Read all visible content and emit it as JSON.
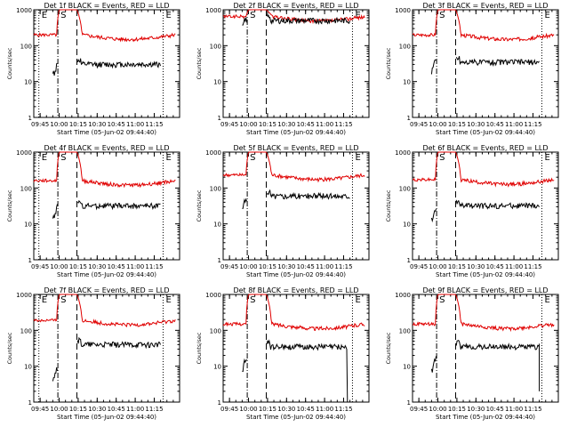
{
  "chart_data": [
    {
      "type": "line",
      "title": "Det 1f BLACK = Events, RED = LLD",
      "xlabel": "Start Time (05-Jun-02 09:44:40)",
      "ylabel": "Counts/sec",
      "yscale": "log",
      "ylim": [
        1,
        1000
      ],
      "x_tick_labels": [
        "09:45",
        "10:00",
        "10:15",
        "10:30",
        "10:45",
        "11:00",
        "11:15"
      ],
      "y_tick_labels": [
        "1",
        "10",
        "100",
        "1000"
      ],
      "markers": [
        {
          "label": "E",
          "time_min": -16
        },
        {
          "label": "S",
          "time_min": -1
        },
        {
          "label": "E",
          "time_min": 82
        }
      ],
      "series": [
        {
          "name": "RED = LLD",
          "color": "#e00000",
          "level": 200,
          "spike_max": 1000,
          "end_min": 92
        },
        {
          "name": "BLACK = Events",
          "color": "#000000",
          "level": 30,
          "pre_level": 15,
          "pre_start_min": -5,
          "end_min": 80
        }
      ]
    },
    {
      "type": "line",
      "title": "Det 2f BLACK = Events, RED = LLD",
      "xlabel": "Start Time (05-Jun-02 09:44:40)",
      "ylabel": "Counts/sec",
      "yscale": "log",
      "ylim": [
        1,
        1000
      ],
      "x_tick_labels": [
        "09:45",
        "10:00",
        "10:15",
        "10:30",
        "10:45",
        "11:00",
        "11:15"
      ],
      "y_tick_labels": [
        "1",
        "10",
        "100",
        "1000"
      ],
      "markers": [
        {
          "label": "S",
          "time_min": -1
        },
        {
          "label": "E",
          "time_min": 82
        }
      ],
      "series": [
        {
          "name": "RED = LLD",
          "color": "#e00000",
          "level": 650,
          "spike_max": 1000,
          "end_min": 92
        },
        {
          "name": "BLACK = Events",
          "color": "#000000",
          "level": 500,
          "pre_level": 300,
          "pre_start_min": -5,
          "end_min": 80
        }
      ]
    },
    {
      "type": "line",
      "title": "Det 3f BLACK = Events, RED = LLD",
      "xlabel": "Start Time (05-Jun-02 09:44:40)",
      "ylabel": "Counts/sec",
      "yscale": "log",
      "ylim": [
        1,
        1000
      ],
      "x_tick_labels": [
        "09:45",
        "10:00",
        "10:15",
        "10:30",
        "10:45",
        "11:00",
        "11:15"
      ],
      "y_tick_labels": [
        "1",
        "10",
        "100",
        "1000"
      ],
      "markers": [
        {
          "label": "S",
          "time_min": -1
        },
        {
          "label": "E",
          "time_min": 82
        }
      ],
      "series": [
        {
          "name": "RED = LLD",
          "color": "#e00000",
          "level": 200,
          "spike_max": 1000,
          "end_min": 92
        },
        {
          "name": "BLACK = Events",
          "color": "#000000",
          "level": 35,
          "pre_level": 20,
          "pre_start_min": -5,
          "end_min": 80
        }
      ]
    },
    {
      "type": "line",
      "title": "Det 4f BLACK = Events, RED = LLD",
      "xlabel": "Start Time (05-Jun-02 09:44:40)",
      "ylabel": "Counts/sec",
      "yscale": "log",
      "ylim": [
        1,
        1000
      ],
      "x_tick_labels": [
        "09:45",
        "10:00",
        "10:15",
        "10:30",
        "10:45",
        "11:00",
        "11:15"
      ],
      "y_tick_labels": [
        "1",
        "10",
        "100",
        "1000"
      ],
      "markers": [
        {
          "label": "E",
          "time_min": -16
        },
        {
          "label": "S",
          "time_min": -1
        },
        {
          "label": "E",
          "time_min": 82
        }
      ],
      "series": [
        {
          "name": "RED = LLD",
          "color": "#e00000",
          "level": 160,
          "spike_max": 1000,
          "end_min": 92
        },
        {
          "name": "BLACK = Events",
          "color": "#000000",
          "level": 32,
          "pre_level": 15,
          "pre_start_min": -5,
          "end_min": 80
        }
      ]
    },
    {
      "type": "line",
      "title": "Det 5f BLACK = Events, RED = LLD",
      "xlabel": "Start Time (05-Jun-02 09:44:40)",
      "ylabel": "Counts/sec",
      "yscale": "log",
      "ylim": [
        1,
        1000
      ],
      "x_tick_labels": [
        "09:45",
        "10:00",
        "10:15",
        "10:30",
        "10:45",
        "11:00",
        "11:15"
      ],
      "y_tick_labels": [
        "1",
        "10",
        "100",
        "1000"
      ],
      "markers": [
        {
          "label": "S",
          "time_min": -1
        },
        {
          "label": "E",
          "time_min": 82
        }
      ],
      "series": [
        {
          "name": "RED = LLD",
          "color": "#e00000",
          "level": 230,
          "spike_max": 1000,
          "end_min": 92
        },
        {
          "name": "BLACK = Events",
          "color": "#000000",
          "level": 60,
          "pre_level": 25,
          "pre_start_min": -5,
          "end_min": 80
        }
      ]
    },
    {
      "type": "line",
      "title": "Det 6f BLACK = Events, RED = LLD",
      "xlabel": "Start Time (05-Jun-02 09:44:40)",
      "ylabel": "Counts/sec",
      "yscale": "log",
      "ylim": [
        1,
        1000
      ],
      "x_tick_labels": [
        "09:45",
        "10:00",
        "10:15",
        "10:30",
        "10:45",
        "11:00",
        "11:15"
      ],
      "y_tick_labels": [
        "1",
        "10",
        "100",
        "1000"
      ],
      "markers": [
        {
          "label": "S",
          "time_min": -1
        },
        {
          "label": "E",
          "time_min": 82
        }
      ],
      "series": [
        {
          "name": "RED = LLD",
          "color": "#e00000",
          "level": 170,
          "spike_max": 1000,
          "end_min": 92
        },
        {
          "name": "BLACK = Events",
          "color": "#000000",
          "level": 32,
          "pre_level": 12,
          "pre_start_min": -5,
          "end_min": 80
        }
      ]
    },
    {
      "type": "line",
      "title": "Det 7f BLACK = Events, RED = LLD",
      "xlabel": "Start Time (05-Jun-02 09:44:40)",
      "ylabel": "Counts/sec",
      "yscale": "log",
      "ylim": [
        1,
        1000
      ],
      "x_tick_labels": [
        "09:45",
        "10:00",
        "10:15",
        "10:30",
        "10:45",
        "11:00",
        "11:15"
      ],
      "y_tick_labels": [
        "1",
        "10",
        "100",
        "1000"
      ],
      "markers": [
        {
          "label": "E",
          "time_min": -16
        },
        {
          "label": "S",
          "time_min": -1
        },
        {
          "label": "E",
          "time_min": 82
        }
      ],
      "series": [
        {
          "name": "RED = LLD",
          "color": "#e00000",
          "level": 190,
          "spike_max": 1000,
          "end_min": 92
        },
        {
          "name": "BLACK = Events",
          "color": "#000000",
          "level": 40,
          "pre_level": 5,
          "pre_start_min": -5,
          "end_min": 80
        }
      ]
    },
    {
      "type": "line",
      "title": "Det 8f BLACK = Events, RED = LLD",
      "xlabel": "Start Time (05-Jun-02 09:44:40)",
      "ylabel": "Counts/sec",
      "yscale": "log",
      "ylim": [
        1,
        1000
      ],
      "x_tick_labels": [
        "09:45",
        "10:00",
        "10:15",
        "10:30",
        "10:45",
        "11:00",
        "11:15"
      ],
      "y_tick_labels": [
        "1",
        "10",
        "100",
        "1000"
      ],
      "markers": [
        {
          "label": "S",
          "time_min": -1
        },
        {
          "label": "E",
          "time_min": 82
        }
      ],
      "series": [
        {
          "name": "RED = LLD",
          "color": "#e00000",
          "level": 150,
          "spike_max": 1000,
          "end_min": 92
        },
        {
          "name": "BLACK = Events",
          "color": "#000000",
          "level": 35,
          "pre_level": 8,
          "pre_start_min": -5,
          "end_min": 78,
          "drop_min": 78,
          "drop_to": 1
        }
      ]
    },
    {
      "type": "line",
      "title": "Det 9f BLACK = Events, RED = LLD",
      "xlabel": "Start Time (05-Jun-02 09:44:40)",
      "ylabel": "Counts/sec",
      "yscale": "log",
      "ylim": [
        1,
        1000
      ],
      "x_tick_labels": [
        "09:45",
        "10:00",
        "10:15",
        "10:30",
        "10:45",
        "11:00",
        "11:15"
      ],
      "y_tick_labels": [
        "1",
        "10",
        "100",
        "1000"
      ],
      "markers": [
        {
          "label": "S",
          "time_min": -1
        },
        {
          "label": "E",
          "time_min": 82
        }
      ],
      "series": [
        {
          "name": "RED = LLD",
          "color": "#e00000",
          "level": 150,
          "spike_max": 1000,
          "end_min": 92
        },
        {
          "name": "BLACK = Events",
          "color": "#000000",
          "level": 35,
          "pre_level": 8,
          "pre_start_min": -5,
          "end_min": 80,
          "drop_min": 80,
          "drop_to": 2
        }
      ]
    }
  ]
}
